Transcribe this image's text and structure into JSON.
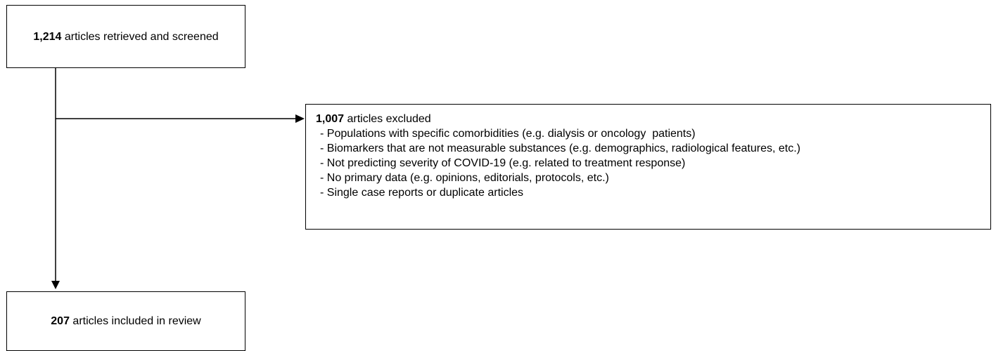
{
  "nodes": [
    {
      "count": "1,214",
      "label": "articles retrieved and screened"
    },
    {
      "count": "1,007",
      "label": "articles excluded",
      "items": [
        "- Populations with specific comorbidities (e.g. dialysis or oncology  patients)",
        "- Biomarkers that are not measurable substances (e.g. demographics, radiological features, etc.)",
        "- Not predicting severity of COVID-19 (e.g. related to treatment response)",
        "- No primary data (e.g. opinions, editorials, protocols, etc.)",
        "- Single case reports or duplicate articles"
      ]
    },
    {
      "count": "207",
      "label": "articles included in review"
    }
  ]
}
